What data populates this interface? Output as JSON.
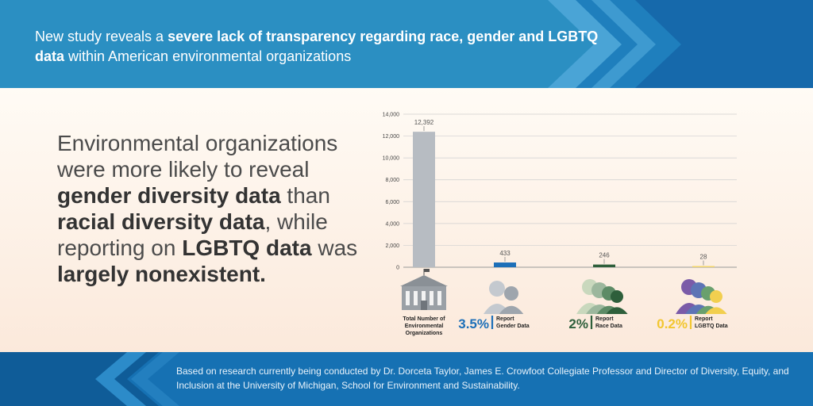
{
  "header": {
    "headline_pre": "New study reveals a ",
    "headline_bold1": "severe lack of transparency regarding race, gender and LGBTQ data",
    "headline_post": " within American environmental organizations"
  },
  "statement": {
    "p1": "Environmental organizations were more likely to reveal ",
    "b1": "gender diversity data",
    "p2": " than ",
    "b2": "racial diversity data",
    "p3": ", while reporting on ",
    "b3": "LGBTQ data",
    "p4": " was ",
    "b4": "largely nonexistent."
  },
  "chart_data": {
    "type": "bar",
    "categories": [
      "Total Number of Environmental Organizations",
      "Report Gender Data",
      "Report Race Data",
      "Report LGBTQ Data"
    ],
    "values": [
      12392,
      433,
      246,
      28
    ],
    "value_labels": [
      "12,392",
      "433",
      "246",
      "28"
    ],
    "colors": [
      "#b7bcc2",
      "#1d6fb8",
      "#2e5f3b",
      "#f2d66b"
    ],
    "ylim": [
      0,
      14000
    ],
    "yticks": [
      0,
      2000,
      4000,
      6000,
      8000,
      10000,
      12000,
      14000
    ],
    "ytick_labels": [
      "0",
      "2,000",
      "4,000",
      "6,000",
      "8,000",
      "10,000",
      "12,000",
      "14,000"
    ],
    "grid": true,
    "percentages": [
      "3.5%",
      "2%",
      "0.2%"
    ],
    "caption_lines": [
      [
        "Total Number of",
        "Environmental",
        "Organizations"
      ],
      [
        "Report",
        "Gender Data"
      ],
      [
        "Report",
        "Race Data"
      ],
      [
        "Report",
        "LGBTQ Data"
      ]
    ],
    "icons": [
      "building-icon",
      "gender-silhouettes-icon",
      "race-silhouettes-icon",
      "lgbtq-silhouettes-icon"
    ]
  },
  "footer": {
    "note": "Based on research currently being conducted by Dr. Dorceta Taylor, James E. Crowfoot Collegiate Professor and Director of Diversity, Equity, and Inclusion at the University of Michigan, School for Environment and Sustainability."
  },
  "colors": {
    "top_banner": "#2b8fc2",
    "bottom_banner": "#1671b3",
    "panel": "#fdf4ec"
  }
}
